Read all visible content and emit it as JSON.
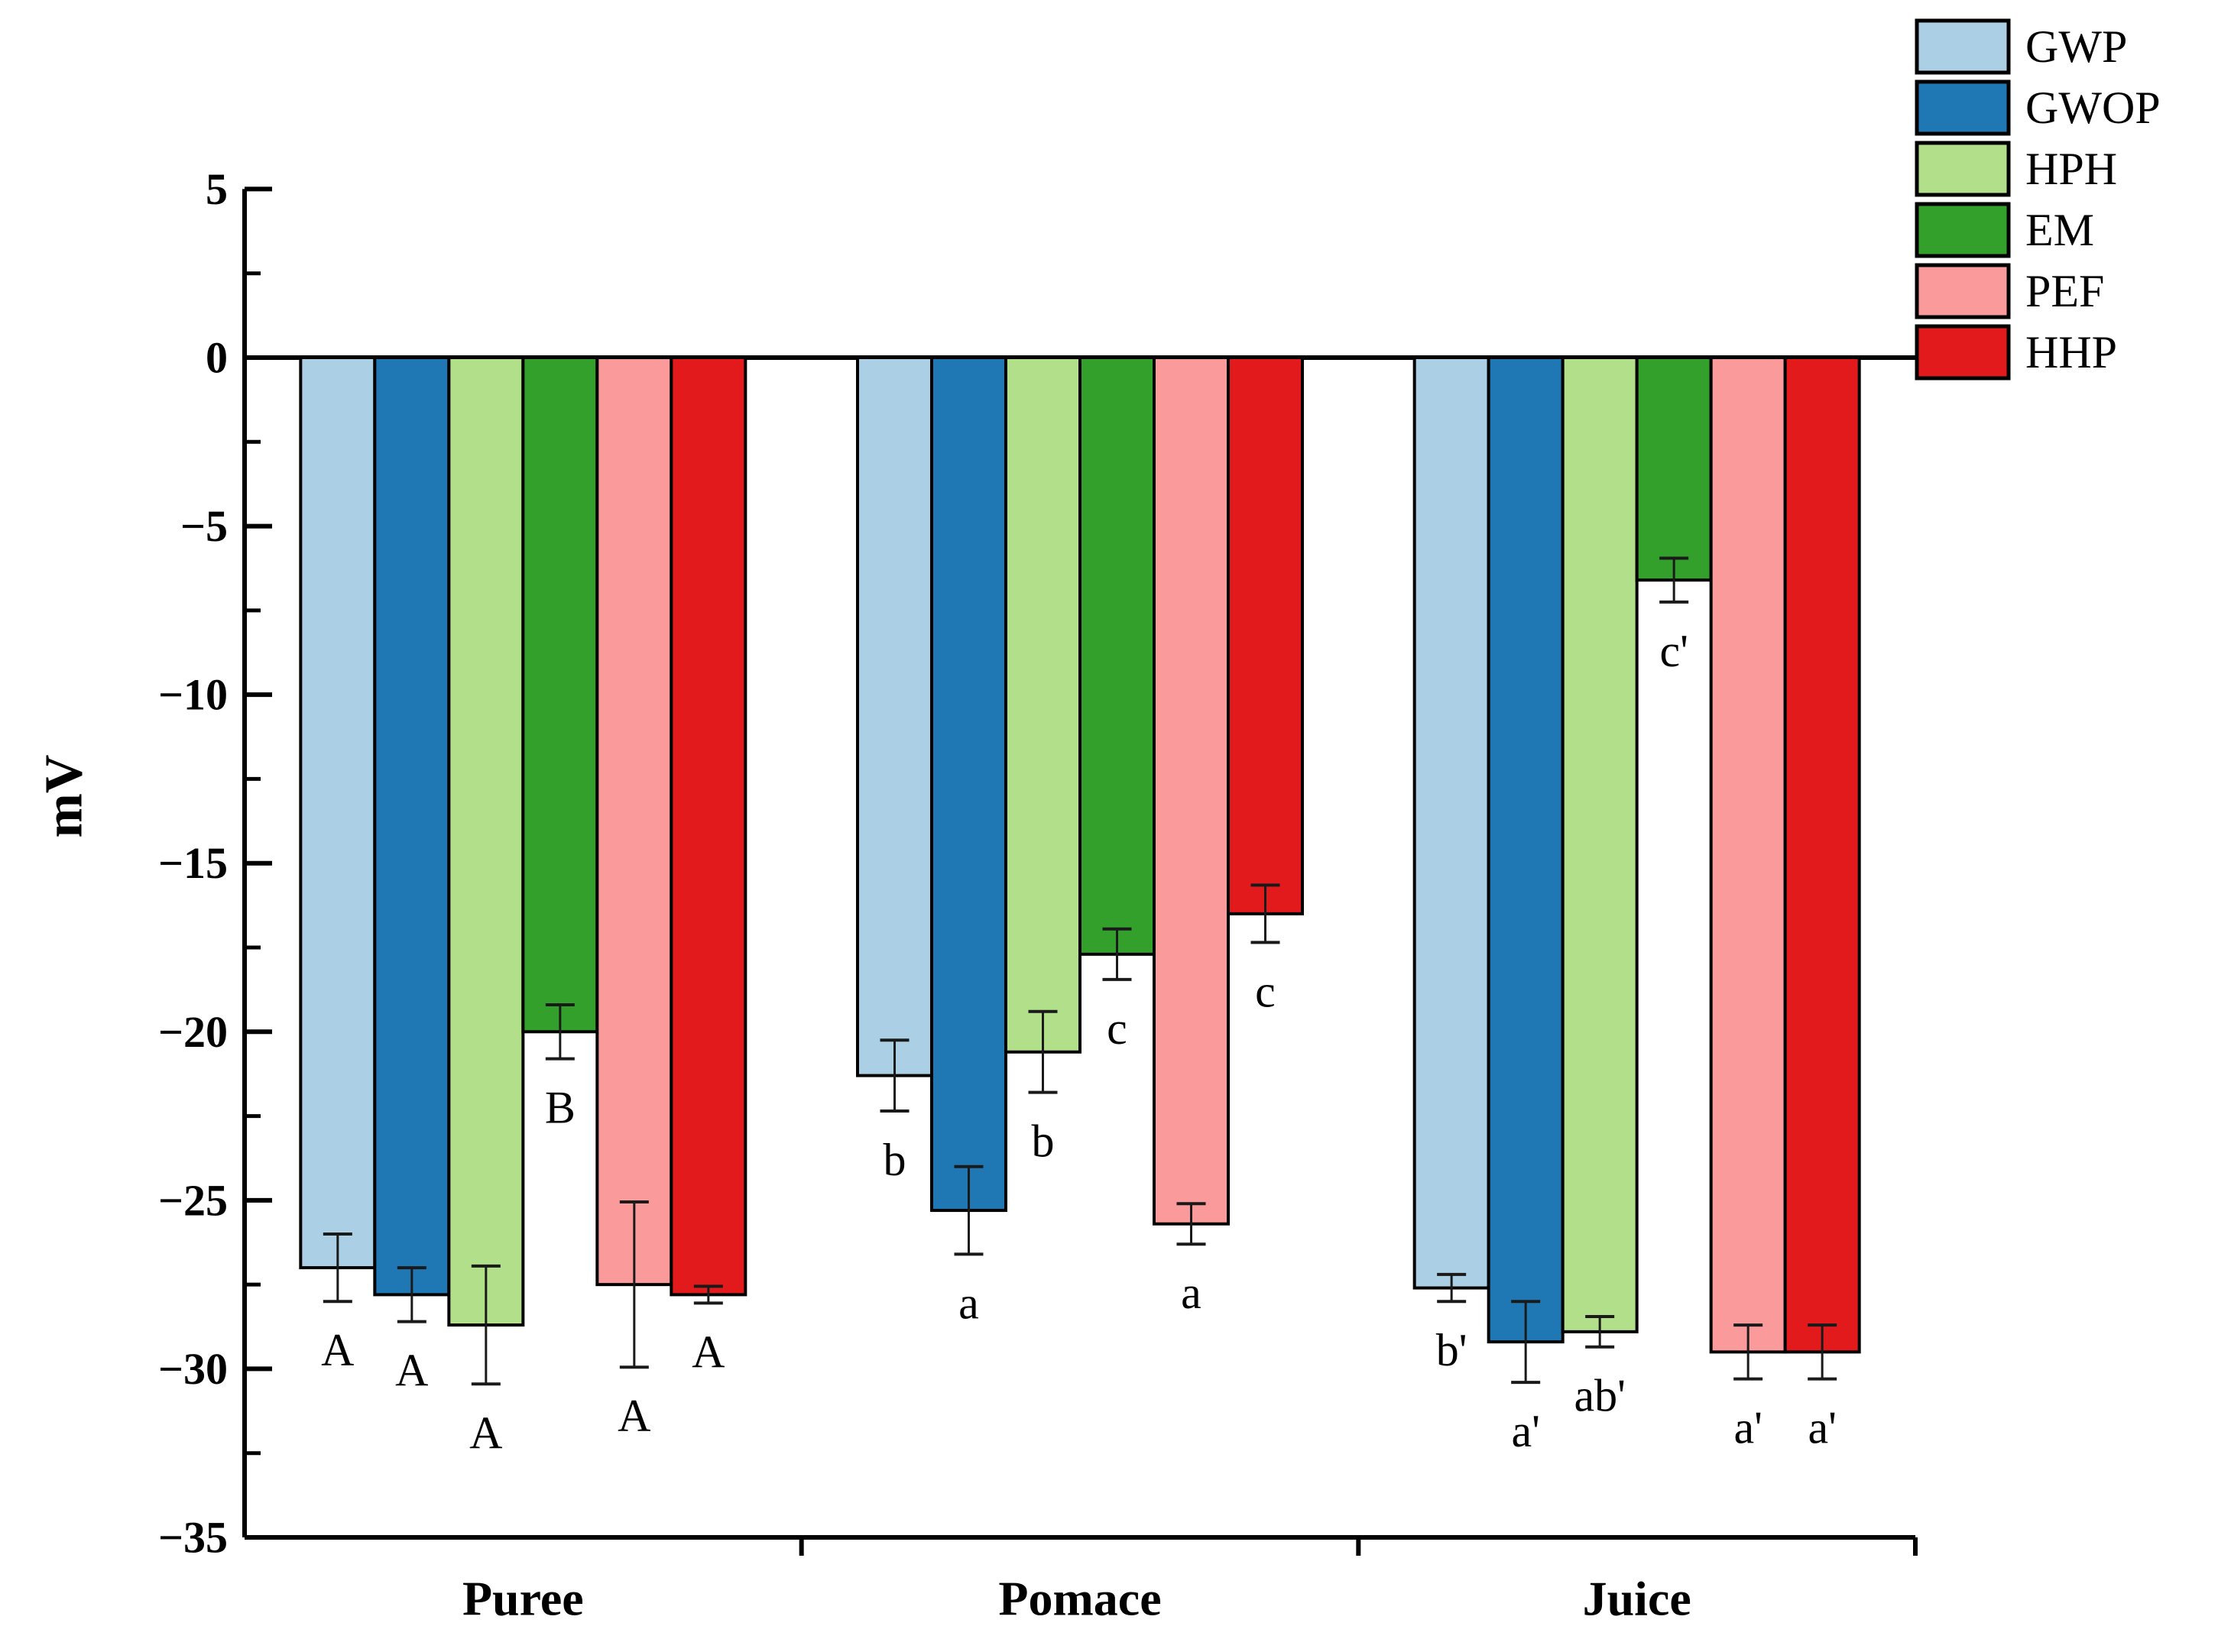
{
  "figure": {
    "background": "#ffffff",
    "axis_color": "#000000",
    "error_bar_color": "#1a1a1a"
  },
  "chart_data": {
    "type": "bar",
    "title": "",
    "xlabel": "",
    "ylabel": "mV",
    "ylim": [
      -35,
      5
    ],
    "y_major_ticks": [
      5,
      0,
      -5,
      -10,
      -15,
      -20,
      -25,
      -30,
      -35
    ],
    "y_minor_ticks": [
      2.5,
      -2.5,
      -7.5,
      -12.5,
      -17.5,
      -22.5,
      -27.5,
      -32.5
    ],
    "grid": false,
    "legend_position": "top-right",
    "categories": [
      "Puree",
      "Pomace",
      "Juice"
    ],
    "series": [
      {
        "name": "GWP",
        "color": "#abd0e6",
        "values": [
          -27.0,
          -21.3,
          -27.6
        ],
        "errors": [
          1.0,
          1.05,
          0.4
        ],
        "letters": [
          "A",
          "b",
          "b'"
        ]
      },
      {
        "name": "GWOP",
        "color": "#1f78b4",
        "values": [
          -27.8,
          -25.3,
          -29.2
        ],
        "errors": [
          0.8,
          1.3,
          1.2
        ],
        "letters": [
          "A",
          "a",
          "a'"
        ]
      },
      {
        "name": "HPH",
        "color": "#b2df8a",
        "values": [
          -28.7,
          -20.6,
          -28.9
        ],
        "errors": [
          1.75,
          1.2,
          0.45
        ],
        "letters": [
          "A",
          "b",
          "ab'"
        ]
      },
      {
        "name": "EM",
        "color": "#33a02c",
        "values": [
          -20.0,
          -17.7,
          -6.6
        ],
        "errors": [
          0.8,
          0.75,
          0.65
        ],
        "letters": [
          "B",
          "c",
          "c'"
        ]
      },
      {
        "name": "PEF",
        "color": "#fa9a9a",
        "values": [
          -27.5,
          -25.7,
          -29.5
        ],
        "errors": [
          2.45,
          0.6,
          0.8
        ],
        "letters": [
          "A",
          "a",
          "a'"
        ]
      },
      {
        "name": "HHP",
        "color": "#e31a1c",
        "values": [
          -27.8,
          -16.5,
          -29.5
        ],
        "errors": [
          0.25,
          0.85,
          0.8
        ],
        "letters": [
          "A",
          "c",
          "a'"
        ]
      }
    ]
  }
}
